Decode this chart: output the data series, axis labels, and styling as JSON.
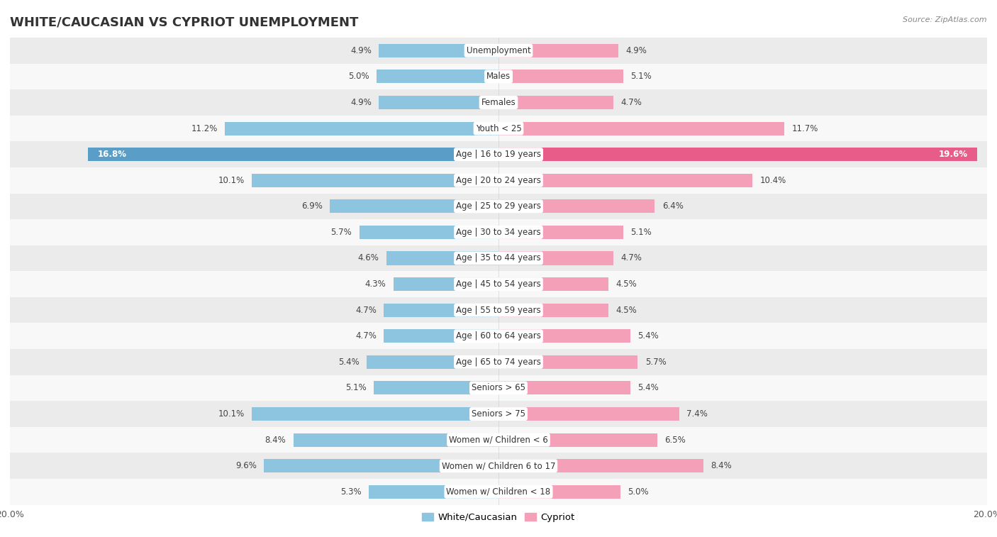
{
  "title": "WHITE/CAUCASIAN VS CYPRIOT UNEMPLOYMENT",
  "source": "Source: ZipAtlas.com",
  "categories": [
    "Unemployment",
    "Males",
    "Females",
    "Youth < 25",
    "Age | 16 to 19 years",
    "Age | 20 to 24 years",
    "Age | 25 to 29 years",
    "Age | 30 to 34 years",
    "Age | 35 to 44 years",
    "Age | 45 to 54 years",
    "Age | 55 to 59 years",
    "Age | 60 to 64 years",
    "Age | 65 to 74 years",
    "Seniors > 65",
    "Seniors > 75",
    "Women w/ Children < 6",
    "Women w/ Children 6 to 17",
    "Women w/ Children < 18"
  ],
  "white_values": [
    4.9,
    5.0,
    4.9,
    11.2,
    16.8,
    10.1,
    6.9,
    5.7,
    4.6,
    4.3,
    4.7,
    4.7,
    5.4,
    5.1,
    10.1,
    8.4,
    9.6,
    5.3
  ],
  "cypriot_values": [
    4.9,
    5.1,
    4.7,
    11.7,
    19.6,
    10.4,
    6.4,
    5.1,
    4.7,
    4.5,
    4.5,
    5.4,
    5.7,
    5.4,
    7.4,
    6.5,
    8.4,
    5.0
  ],
  "white_color": "#8dc4e0",
  "cypriot_color": "#f4a0b8",
  "white_color_highlight": "#5a9ec8",
  "cypriot_color_highlight": "#e85c8a",
  "bg_row_light": "#ebebeb",
  "bg_row_white": "#f8f8f8",
  "max_value": 20.0,
  "bar_height": 0.52,
  "title_fontsize": 13,
  "label_fontsize": 8.5,
  "tick_fontsize": 9,
  "legend_fontsize": 9.5,
  "value_label_color": "#444444",
  "category_label_color": "#333333"
}
